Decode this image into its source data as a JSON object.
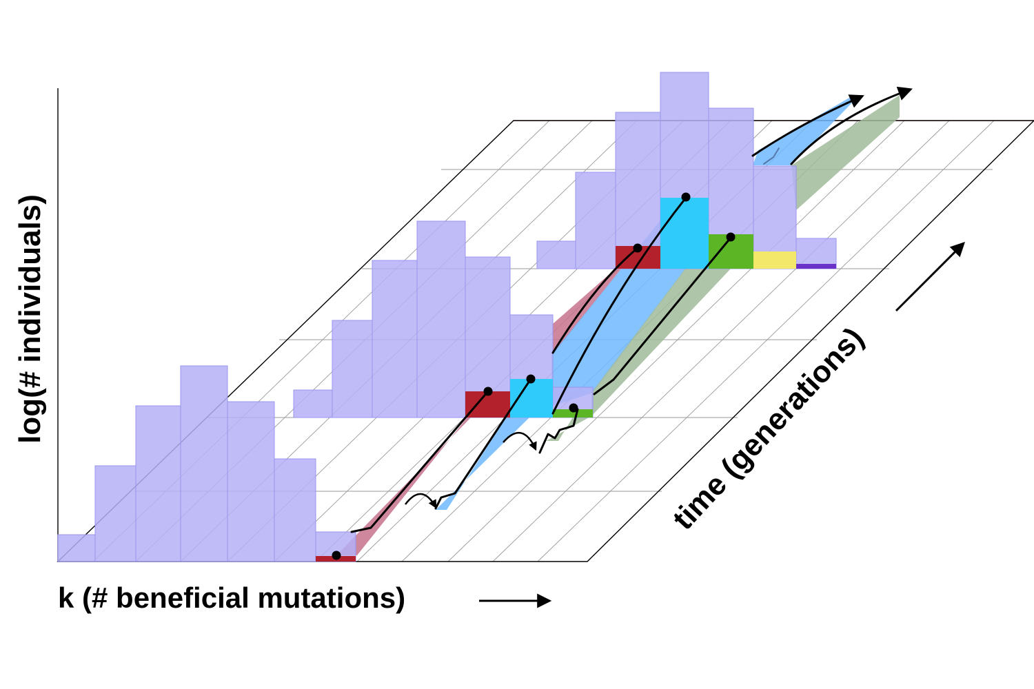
{
  "labels": {
    "y_axis": "log(# individuals)",
    "x_axis": "k (# beneficial mutations)",
    "time_axis": "time (generations)"
  },
  "colors": {
    "histogram": "#b4b0f6",
    "histogram_edge": "#9a94ee",
    "red": "#b3222c",
    "blue": "#2ecbfb",
    "green": "#5cb524",
    "yellow": "#f3e86a",
    "purple": "#6a32c8",
    "red_trail": "#c7728c",
    "blue_trail": "#70b8ff",
    "green_trail": "#a0bb9a",
    "grid": "#9a9a9a",
    "cutoff_line": "#e05050"
  },
  "histograms": [
    {
      "name": "early",
      "bins": 7,
      "heights_relative": [
        0.14,
        0.5,
        0.8,
        1.0,
        0.83,
        0.52,
        0.14
      ]
    },
    {
      "name": "middle",
      "bins": 7,
      "heights_relative": [
        0.14,
        0.49,
        0.8,
        1.0,
        0.82,
        0.52,
        0.14
      ]
    },
    {
      "name": "late",
      "bins": 7,
      "heights_relative": [
        0.14,
        0.49,
        0.8,
        1.0,
        0.82,
        0.52,
        0.14
      ]
    }
  ],
  "lineages": [
    "red",
    "blue",
    "green",
    "yellow",
    "purple"
  ]
}
